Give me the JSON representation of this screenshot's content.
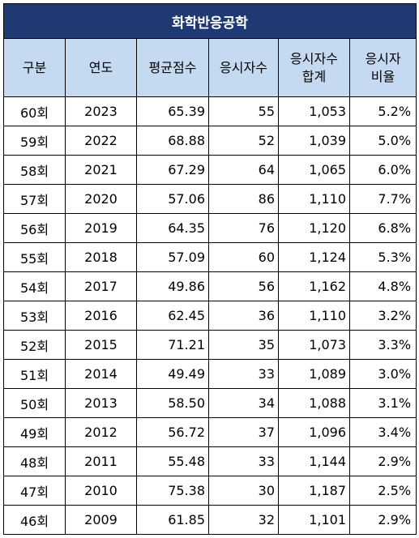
{
  "title": "화학반응공학",
  "headers": [
    "구분",
    "연도",
    "평균점수",
    "응시자수",
    "응시자수\n합계",
    "응시자\n비율"
  ],
  "rows": [
    [
      "60회",
      "2023",
      "65.39",
      "55",
      "1,053",
      "5.2%"
    ],
    [
      "59회",
      "2022",
      "68.88",
      "52",
      "1,039",
      "5.0%"
    ],
    [
      "58회",
      "2021",
      "67.29",
      "64",
      "1,065",
      "6.0%"
    ],
    [
      "57회",
      "2020",
      "57.06",
      "86",
      "1,110",
      "7.7%"
    ],
    [
      "56회",
      "2019",
      "64.35",
      "76",
      "1,120",
      "6.8%"
    ],
    [
      "55회",
      "2018",
      "57.09",
      "60",
      "1,124",
      "5.3%"
    ],
    [
      "54회",
      "2017",
      "49.86",
      "56",
      "1,162",
      "4.8%"
    ],
    [
      "53회",
      "2016",
      "62.45",
      "36",
      "1,110",
      "3.2%"
    ],
    [
      "52회",
      "2015",
      "71.21",
      "35",
      "1,073",
      "3.3%"
    ],
    [
      "51회",
      "2014",
      "49.49",
      "33",
      "1,089",
      "3.0%"
    ],
    [
      "50회",
      "2013",
      "58.50",
      "34",
      "1,088",
      "3.1%"
    ],
    [
      "49회",
      "2012",
      "56.72",
      "37",
      "1,096",
      "3.4%"
    ],
    [
      "48회",
      "2011",
      "55.48",
      "33",
      "1,144",
      "2.9%"
    ],
    [
      "47회",
      "2010",
      "75.38",
      "30",
      "1,187",
      "2.5%"
    ],
    [
      "46회",
      "2009",
      "61.85",
      "32",
      "1,101",
      "2.9%"
    ]
  ]
}
